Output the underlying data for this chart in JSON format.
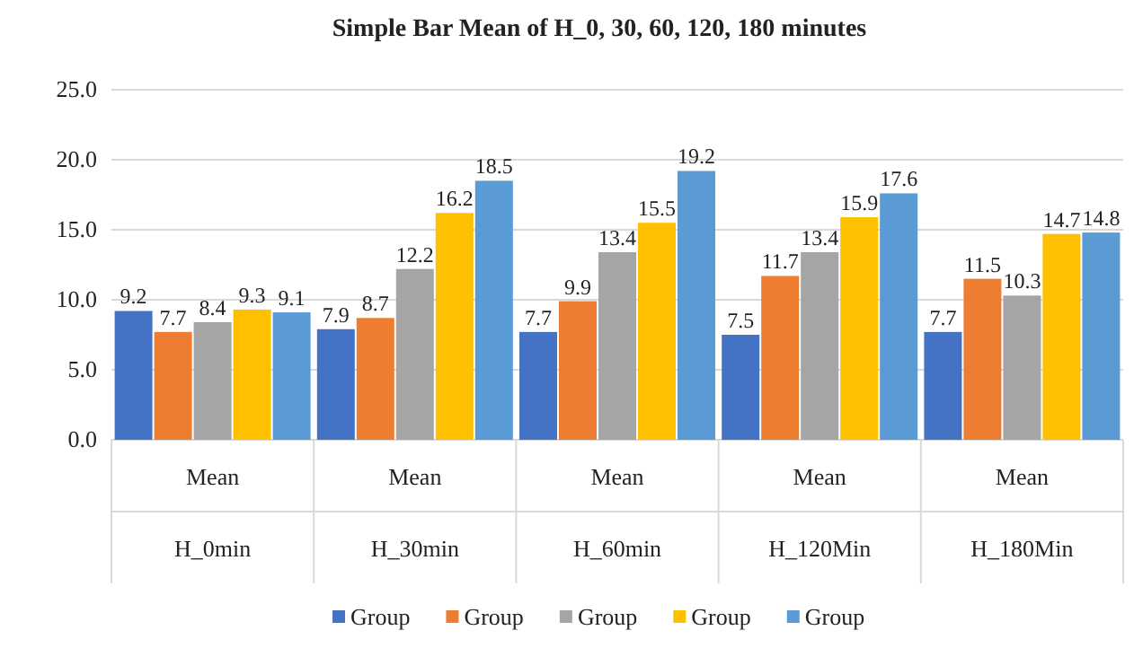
{
  "chart_data": {
    "type": "bar",
    "title": "Simple Bar Mean of H_0, 30, 60, 120, 180 minutes",
    "categories": [
      "Mean\nH_0min",
      "Mean\nH_30min",
      "Mean\nH_60min",
      "Mean\nH_120Min",
      "Mean\nH_180Min"
    ],
    "series": [
      {
        "name": "Group",
        "color": "#4472c4",
        "values": [
          9.2,
          7.9,
          7.7,
          7.5,
          7.7
        ]
      },
      {
        "name": "Group",
        "color": "#ed7d31",
        "values": [
          7.7,
          8.7,
          9.9,
          11.7,
          11.5
        ]
      },
      {
        "name": "Group",
        "color": "#a5a5a5",
        "values": [
          8.4,
          12.2,
          13.4,
          13.4,
          10.3
        ]
      },
      {
        "name": "Group",
        "color": "#ffc000",
        "values": [
          9.3,
          16.2,
          15.5,
          15.9,
          14.7
        ]
      },
      {
        "name": "Group",
        "color": "#5b9bd5",
        "values": [
          9.1,
          18.5,
          19.2,
          17.6,
          14.8
        ]
      }
    ],
    "ylim": [
      0,
      25
    ],
    "yticks": [
      {
        "value": 0,
        "label": "0.0"
      },
      {
        "value": 5,
        "label": "5.0"
      },
      {
        "value": 10,
        "label": "10.0"
      },
      {
        "value": 15,
        "label": "15.0"
      },
      {
        "value": 20,
        "label": "20.0"
      },
      {
        "value": 25,
        "label": "25.0"
      }
    ],
    "grid": "y",
    "legend": "bottom",
    "data_labels": true
  }
}
